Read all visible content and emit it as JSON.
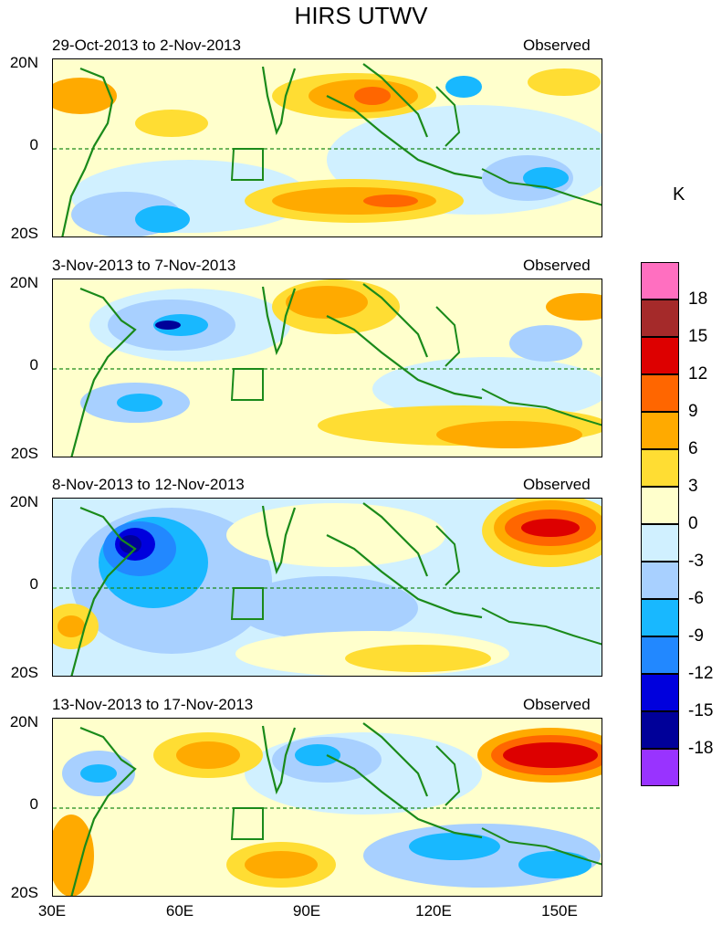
{
  "title": "HIRS UTWV",
  "unit": "K",
  "axis": {
    "y_labels": [
      "20N",
      "0",
      "20S"
    ],
    "x_labels": [
      "30E",
      "60E",
      "90E",
      "120E",
      "150E"
    ]
  },
  "panels": [
    {
      "date_range": "29-Oct-2013 to 2-Nov-2013",
      "tag": "Observed"
    },
    {
      "date_range": "3-Nov-2013 to 7-Nov-2013",
      "tag": "Observed"
    },
    {
      "date_range": "8-Nov-2013 to 12-Nov-2013",
      "tag": "Observed"
    },
    {
      "date_range": "13-Nov-2013 to 17-Nov-2013",
      "tag": "Observed"
    }
  ],
  "colorbar": {
    "labels": [
      "18",
      "15",
      "12",
      "9",
      "6",
      "3",
      "0",
      "-3",
      "-6",
      "-9",
      "-12",
      "-15",
      "-18"
    ],
    "colors": [
      "#ff6fc0",
      "#a52a2a",
      "#dd0000",
      "#ff6600",
      "#ffaa00",
      "#ffdd33",
      "#ffffcc",
      "#d0f0ff",
      "#a8d0ff",
      "#18b8ff",
      "#2288ff",
      "#0000dd",
      "#000099",
      "#9933ff"
    ]
  },
  "colors": {
    "coastline": "#1a8a1a",
    "frame": "#000000"
  }
}
